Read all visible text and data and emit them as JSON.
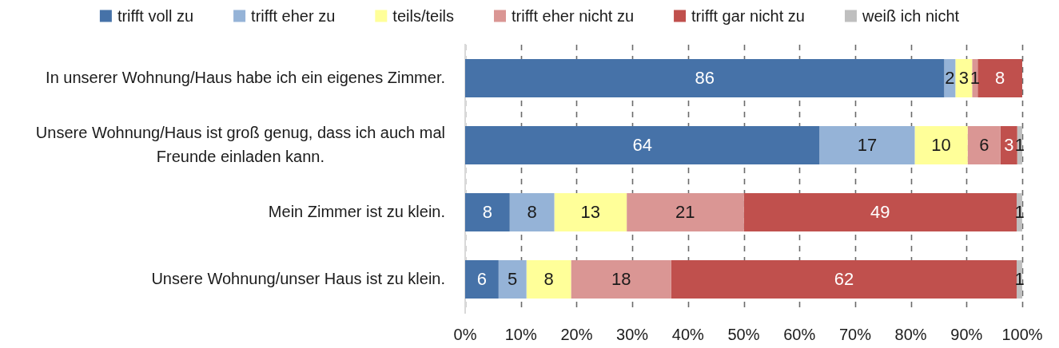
{
  "chart_data": {
    "type": "bar",
    "orientation": "horizontal",
    "stacked": true,
    "categories": [
      "In unserer Wohnung/Haus habe ich ein eigenes Zimmer.",
      "Unsere Wohnung/Haus ist groß genug, dass ich auch mal Freunde einladen kann.",
      "Mein Zimmer ist zu klein.",
      "Unsere Wohnung/unser Haus ist zu klein."
    ],
    "series": [
      {
        "name": "trifft voll zu",
        "color": "#4672a8",
        "values": [
          86,
          63.6,
          8,
          6
        ],
        "value_labels": [
          "86",
          "64",
          "8",
          "6"
        ]
      },
      {
        "name": "trifft eher zu",
        "color": "#95b3d7",
        "values": [
          2,
          17.1,
          8,
          5
        ],
        "value_labels": [
          "2",
          "17",
          "8",
          "5"
        ]
      },
      {
        "name": "teils/teils",
        "color": "#ffff99",
        "values": [
          3,
          9.5,
          13,
          8
        ],
        "value_labels": [
          "3",
          "10",
          "13",
          "8"
        ]
      },
      {
        "name": "trifft eher nicht zu",
        "color": "#da9694",
        "values": [
          1,
          5.9,
          21,
          18
        ],
        "value_labels": [
          "1",
          "6",
          "21",
          "18"
        ]
      },
      {
        "name": "trifft gar nicht zu",
        "color": "#c0504d",
        "values": [
          8,
          3.0,
          49,
          62
        ],
        "value_labels": [
          "8",
          "3",
          "49",
          "62"
        ]
      },
      {
        "name": "weiß ich nicht",
        "color": "#bfbfbf",
        "values": [
          null,
          0.9,
          1,
          1
        ],
        "value_labels": [
          null,
          "1",
          "1",
          "1"
        ]
      }
    ],
    "xlim": [
      0,
      100
    ],
    "xticks": [
      {
        "value": 0,
        "label": "0%"
      },
      {
        "value": 10,
        "label": "10%"
      },
      {
        "value": 20,
        "label": "20%"
      },
      {
        "value": 30,
        "label": "30%"
      },
      {
        "value": 40,
        "label": "40%"
      },
      {
        "value": 50,
        "label": "50%"
      },
      {
        "value": 60,
        "label": "60%"
      },
      {
        "value": 70,
        "label": "70%"
      },
      {
        "value": 80,
        "label": "80%"
      },
      {
        "value": 90,
        "label": "90%"
      },
      {
        "value": 100,
        "label": "100%"
      }
    ],
    "grid": "x",
    "legend": "top"
  }
}
